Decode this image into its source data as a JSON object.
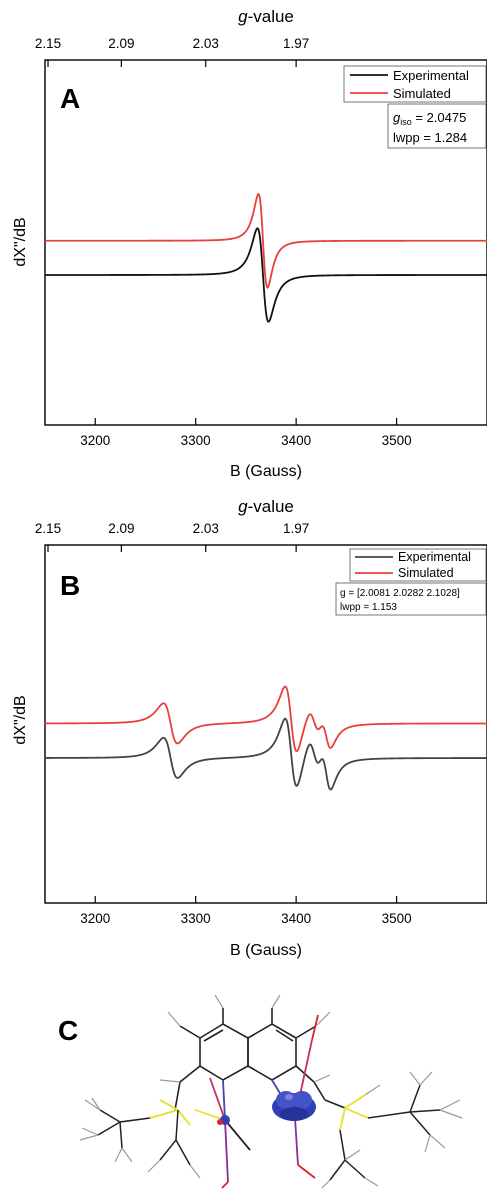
{
  "chart_data": [
    {
      "panel": "A",
      "type": "line",
      "xlabel": "B (Gauss)",
      "ylabel": "dX\"/dB",
      "top_axis_label": "g-value",
      "top_axis_label_main": "g",
      "top_axis_label_suffix": "-value",
      "top_ticks": [
        "2.15",
        "2.09",
        "2.03",
        "1.97"
      ],
      "top_tick_positions": [
        3153,
        3226,
        3310,
        3400
      ],
      "xlim": [
        3150,
        3590
      ],
      "xticks": [
        3200,
        3300,
        3400,
        3500
      ],
      "legend_position": "top-right",
      "legend": [
        "Experimental",
        "Simulated"
      ],
      "annotation_lines": [
        {
          "main": "g",
          "sub": "iso",
          "rest": " = 2.0475"
        },
        {
          "main": "lwpp = 1.284",
          "sub": "",
          "rest": ""
        }
      ],
      "series": [
        {
          "name": "Experimental",
          "color": "#111111",
          "baseline": 0.0,
          "peaks": [
            {
              "center": 3367,
              "width": 5.5,
              "amp": 1.0
            }
          ]
        },
        {
          "name": "Simulated",
          "color": "#e8403a",
          "baseline": 0.2,
          "peaks": [
            {
              "center": 3367,
              "width": 4.5,
              "amp": 1.0
            }
          ]
        }
      ]
    },
    {
      "panel": "B",
      "type": "line",
      "xlabel": "B (Gauss)",
      "ylabel": "dX\"/dB",
      "top_axis_label": "g-value",
      "top_axis_label_main": "g",
      "top_axis_label_suffix": "-value",
      "top_ticks": [
        "2.15",
        "2.09",
        "2.03",
        "1.97"
      ],
      "top_tick_positions": [
        3153,
        3226,
        3310,
        3400
      ],
      "xlim": [
        3150,
        3590
      ],
      "xticks": [
        3200,
        3300,
        3400,
        3500
      ],
      "legend_position": "top-right",
      "legend": [
        "Experimental",
        "Simulated"
      ],
      "annotation_lines": [
        {
          "main": "g = [2.0081 2.0282 2.1028]",
          "sub": "",
          "rest": ""
        },
        {
          "main": "lwpp = 1.153",
          "sub": "",
          "rest": ""
        }
      ],
      "series": [
        {
          "name": "Experimental",
          "color": "#444444",
          "baseline": 0.0,
          "peaks": [
            {
              "center": 3275,
              "width": 7,
              "amp": 0.55
            },
            {
              "center": 3395,
              "width": 6,
              "amp": 1.0
            },
            {
              "center": 3418,
              "width": 6,
              "amp": 0.55
            },
            {
              "center": 3430,
              "width": 5,
              "amp": 0.6
            }
          ]
        },
        {
          "name": "Simulated",
          "color": "#e8403a",
          "baseline": 0.15,
          "peaks": [
            {
              "center": 3275,
              "width": 7,
              "amp": 0.55
            },
            {
              "center": 3395,
              "width": 6,
              "amp": 0.95
            },
            {
              "center": 3418,
              "width": 6,
              "amp": 0.45
            },
            {
              "center": 3430,
              "width": 5,
              "amp": 0.45
            }
          ]
        }
      ]
    }
  ],
  "panel_labels": {
    "a": "A",
    "b": "B",
    "c": "C"
  },
  "structure": {
    "colors": {
      "bond": "#222222",
      "silicon": "#e8e23a",
      "metal": "#3b48b8",
      "oxygen": "#d8242c",
      "hydrogen": "#9a9a9a"
    },
    "spin_density_color": "#2f3fb5"
  }
}
